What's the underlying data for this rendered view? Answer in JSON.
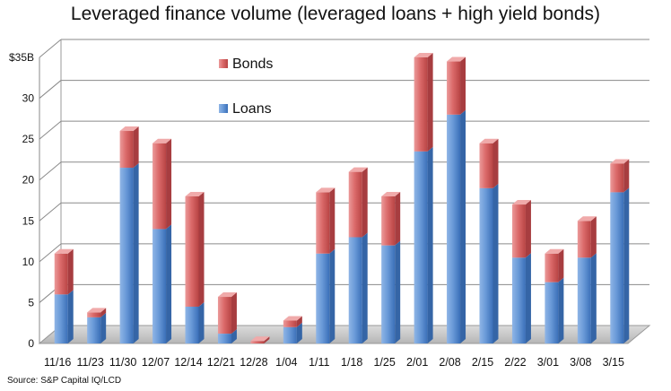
{
  "chart_data": {
    "type": "bar",
    "stacked": true,
    "title": "Leveraged finance volume (leveraged loans + high yield bonds)",
    "xlabel": "",
    "ylabel": "",
    "ylim": [
      0,
      35
    ],
    "y_ticks": [
      "0",
      "5",
      "10",
      "15",
      "20",
      "25",
      "30",
      "$35B"
    ],
    "categories": [
      "11/16",
      "11/23",
      "11/30",
      "12/07",
      "12/14",
      "12/21",
      "12/28",
      "1/04",
      "1/11",
      "1/18",
      "1/25",
      "2/01",
      "2/08",
      "2/15",
      "2/22",
      "3/01",
      "3/08",
      "3/15"
    ],
    "series": [
      {
        "name": "Loans",
        "color": "#4f86cf",
        "values": [
          6.0,
          3.2,
          21.5,
          14.0,
          4.5,
          1.2,
          0,
          2.0,
          11.0,
          13.0,
          12.0,
          23.5,
          28.0,
          19.0,
          10.5,
          7.5,
          10.5,
          18.5
        ]
      },
      {
        "name": "Bonds",
        "color": "#d9565a",
        "values": [
          5.0,
          0.6,
          4.5,
          10.5,
          13.5,
          4.5,
          0.3,
          0.8,
          7.5,
          8.0,
          6.0,
          11.5,
          6.5,
          5.5,
          6.5,
          3.5,
          4.5,
          3.5
        ]
      }
    ],
    "legend": {
      "placement": "top-left",
      "items": [
        "Bonds",
        "Loans"
      ]
    },
    "grid": true,
    "source": "Source: S&P Capital IQ/LCD"
  }
}
